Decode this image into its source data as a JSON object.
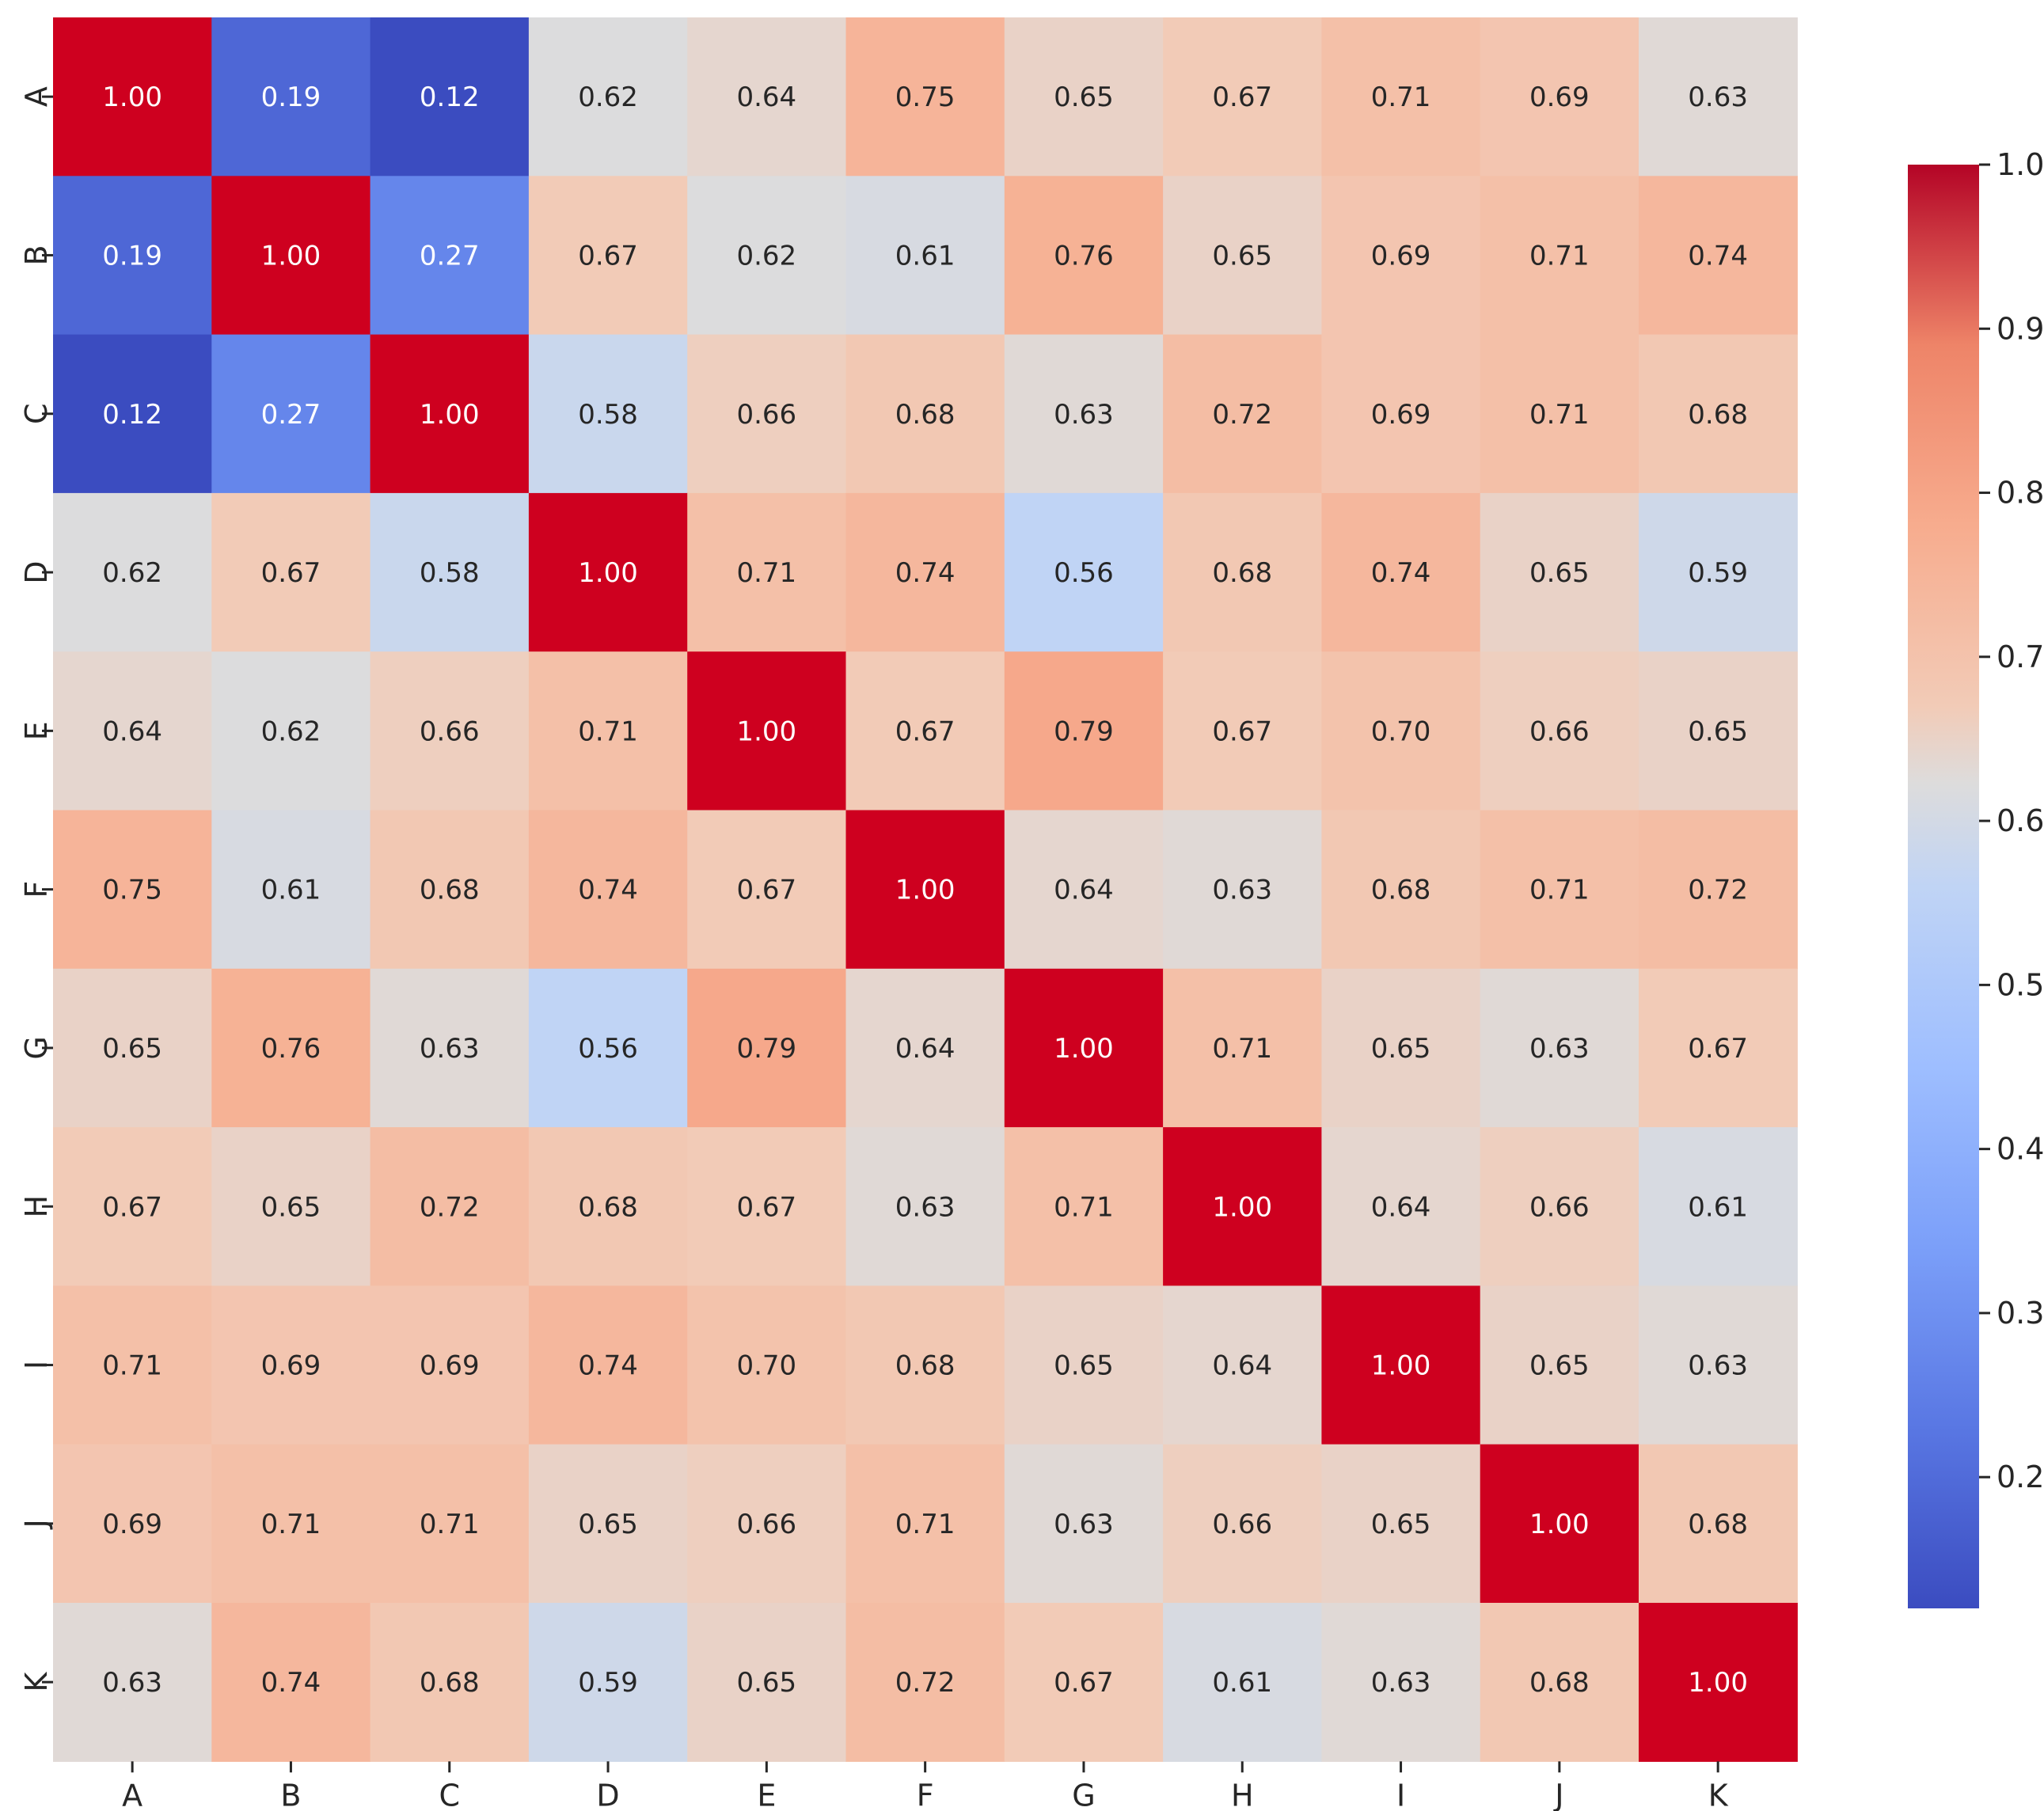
{
  "chart_data": {
    "type": "heatmap",
    "title": "",
    "xlabel": "",
    "ylabel": "",
    "row_labels": [
      "A",
      "B",
      "C",
      "D",
      "E",
      "F",
      "G",
      "H",
      "I",
      "J",
      "K"
    ],
    "col_labels": [
      "A",
      "B",
      "C",
      "D",
      "E",
      "F",
      "G",
      "H",
      "I",
      "J",
      "K"
    ],
    "values": [
      [
        1.0,
        0.19,
        0.12,
        0.62,
        0.64,
        0.75,
        0.65,
        0.67,
        0.71,
        0.69,
        0.63
      ],
      [
        0.19,
        1.0,
        0.27,
        0.67,
        0.62,
        0.61,
        0.76,
        0.65,
        0.69,
        0.71,
        0.74
      ],
      [
        0.12,
        0.27,
        1.0,
        0.58,
        0.66,
        0.68,
        0.63,
        0.72,
        0.69,
        0.71,
        0.68
      ],
      [
        0.62,
        0.67,
        0.58,
        1.0,
        0.71,
        0.74,
        0.56,
        0.68,
        0.74,
        0.65,
        0.59
      ],
      [
        0.64,
        0.62,
        0.66,
        0.71,
        1.0,
        0.67,
        0.79,
        0.67,
        0.7,
        0.66,
        0.65
      ],
      [
        0.75,
        0.61,
        0.68,
        0.74,
        0.67,
        1.0,
        0.64,
        0.63,
        0.68,
        0.71,
        0.72
      ],
      [
        0.65,
        0.76,
        0.63,
        0.56,
        0.79,
        0.64,
        1.0,
        0.71,
        0.65,
        0.63,
        0.67
      ],
      [
        0.67,
        0.65,
        0.72,
        0.68,
        0.67,
        0.63,
        0.71,
        1.0,
        0.64,
        0.66,
        0.61
      ],
      [
        0.71,
        0.69,
        0.69,
        0.74,
        0.7,
        0.68,
        0.65,
        0.64,
        1.0,
        0.65,
        0.63
      ],
      [
        0.69,
        0.71,
        0.71,
        0.65,
        0.66,
        0.71,
        0.63,
        0.66,
        0.65,
        1.0,
        0.68
      ],
      [
        0.63,
        0.74,
        0.68,
        0.59,
        0.65,
        0.72,
        0.67,
        0.61,
        0.63,
        0.68,
        1.0
      ]
    ],
    "value_format": "0.00",
    "colormap": "coolwarm",
    "color_range": [
      0.12,
      1.0
    ],
    "colorbar": {
      "ticks": [
        0.2,
        0.3,
        0.4,
        0.5,
        0.6,
        0.7,
        0.8,
        0.9,
        1.0
      ],
      "tick_labels": [
        "0.2",
        "0.3",
        "0.4",
        "0.5",
        "0.6",
        "0.7",
        "0.8",
        "0.9",
        "1.0"
      ],
      "placement": "right"
    }
  }
}
